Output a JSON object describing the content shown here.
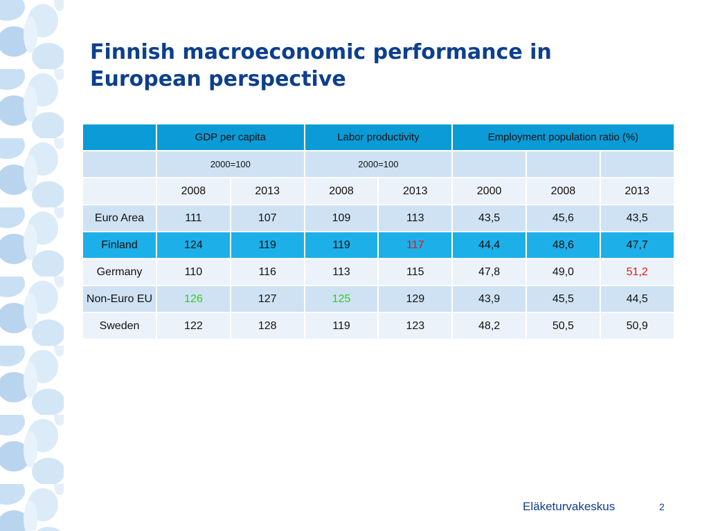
{
  "slide": {
    "title_line1": "Finnish macroeconomic performance in",
    "title_line2": "European perspective",
    "footer": "Eläketurvakeskus",
    "page_number": "2"
  },
  "table": {
    "group_headers": [
      "",
      "GDP per capita",
      "Labor productivity",
      "Employment population ratio (%)"
    ],
    "base_row": [
      "",
      "2000=100",
      "2000=100",
      "",
      "",
      ""
    ],
    "years": [
      "",
      "2008",
      "2013",
      "2008",
      "2013",
      "2000",
      "2008",
      "2013"
    ],
    "rows": [
      {
        "country": "Euro Area",
        "values": [
          "111",
          "107",
          "109",
          "113",
          "43,5",
          "45,6",
          "43,5"
        ]
      },
      {
        "country": "Finland",
        "values": [
          "124",
          "119",
          "119",
          "117",
          "44,4",
          "48,6",
          "47,7"
        ]
      },
      {
        "country": "Germany",
        "values": [
          "110",
          "116",
          "113",
          "115",
          "47,8",
          "49,0",
          "51,2"
        ]
      },
      {
        "country": "Non-Euro EU",
        "values": [
          "126",
          "127",
          "125",
          "129",
          "43,9",
          "45,5",
          "44,5"
        ]
      },
      {
        "country": "Sweden",
        "values": [
          "122",
          "128",
          "119",
          "123",
          "48,2",
          "50,5",
          "50,9"
        ]
      }
    ],
    "highlight_colors": {
      "red": "#e4141b",
      "green": "#2ecc1f",
      "header": "#0b9bd6",
      "finland_row": "#1dafe8"
    }
  }
}
